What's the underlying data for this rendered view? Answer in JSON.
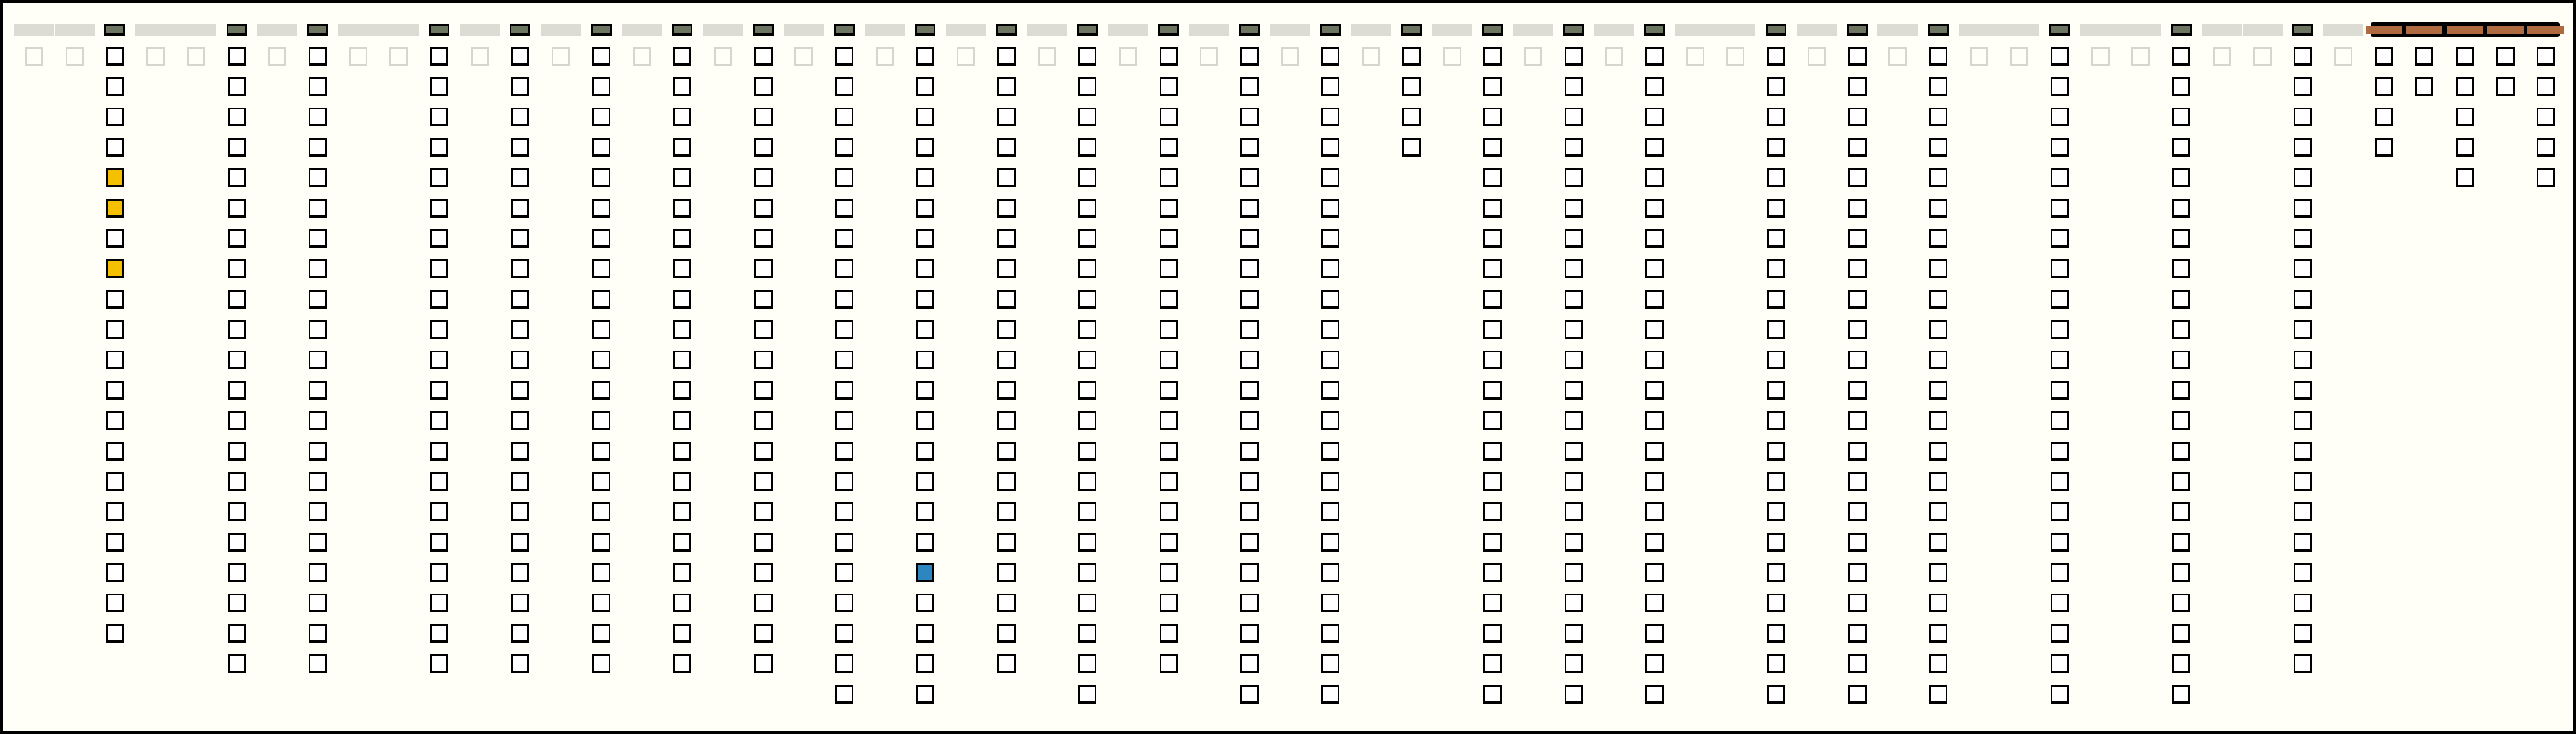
{
  "board": {
    "colors": {
      "empty": "#ffffff",
      "yellow": "#f5c000",
      "blue": "#2e86c1",
      "faded": "#d6d6cf",
      "header_active": "#6b7560",
      "bar": "#b06a3f"
    },
    "columns": [
      {
        "state": "faded"
      },
      {
        "state": "faded"
      },
      {
        "state": "active",
        "count": 20,
        "filled": {
          "4": "yellow",
          "5": "yellow",
          "7": "yellow"
        }
      },
      {
        "state": "faded"
      },
      {
        "state": "faded"
      },
      {
        "state": "active",
        "count": 21
      },
      {
        "state": "faded"
      },
      {
        "state": "active",
        "count": 21
      },
      {
        "state": "faded"
      },
      {
        "state": "faded"
      },
      {
        "state": "active",
        "count": 21
      },
      {
        "state": "faded"
      },
      {
        "state": "active",
        "count": 21
      },
      {
        "state": "faded"
      },
      {
        "state": "active",
        "count": 21
      },
      {
        "state": "faded"
      },
      {
        "state": "active",
        "count": 21
      },
      {
        "state": "faded"
      },
      {
        "state": "active",
        "count": 21
      },
      {
        "state": "faded"
      },
      {
        "state": "active",
        "count": 22
      },
      {
        "state": "faded"
      },
      {
        "state": "active",
        "count": 22,
        "filled": {
          "17": "blue"
        }
      },
      {
        "state": "faded"
      },
      {
        "state": "active",
        "count": 21
      },
      {
        "state": "faded"
      },
      {
        "state": "active",
        "count": 22
      },
      {
        "state": "faded"
      },
      {
        "state": "active",
        "count": 21
      },
      {
        "state": "faded"
      },
      {
        "state": "active",
        "count": 22
      },
      {
        "state": "faded"
      },
      {
        "state": "active",
        "count": 22
      },
      {
        "state": "faded"
      },
      {
        "state": "active",
        "count": 4
      },
      {
        "state": "faded"
      },
      {
        "state": "active",
        "count": 22
      },
      {
        "state": "faded"
      },
      {
        "state": "active",
        "count": 22
      },
      {
        "state": "faded"
      },
      {
        "state": "active",
        "count": 22
      },
      {
        "state": "faded"
      },
      {
        "state": "faded"
      },
      {
        "state": "active",
        "count": 22
      },
      {
        "state": "faded"
      },
      {
        "state": "active",
        "count": 22
      },
      {
        "state": "faded"
      },
      {
        "state": "active",
        "count": 22
      },
      {
        "state": "faded"
      },
      {
        "state": "faded"
      },
      {
        "state": "active",
        "count": 22
      },
      {
        "state": "faded"
      },
      {
        "state": "faded"
      },
      {
        "state": "active",
        "count": 22
      },
      {
        "state": "faded"
      },
      {
        "state": "faded"
      },
      {
        "state": "active",
        "count": 21
      },
      {
        "state": "faded"
      },
      {
        "state": "bar",
        "count": 4
      },
      {
        "state": "bar",
        "count": 2
      },
      {
        "state": "bar",
        "count": 5
      },
      {
        "state": "bar",
        "count": 2
      },
      {
        "state": "bar",
        "count": 5
      }
    ]
  }
}
